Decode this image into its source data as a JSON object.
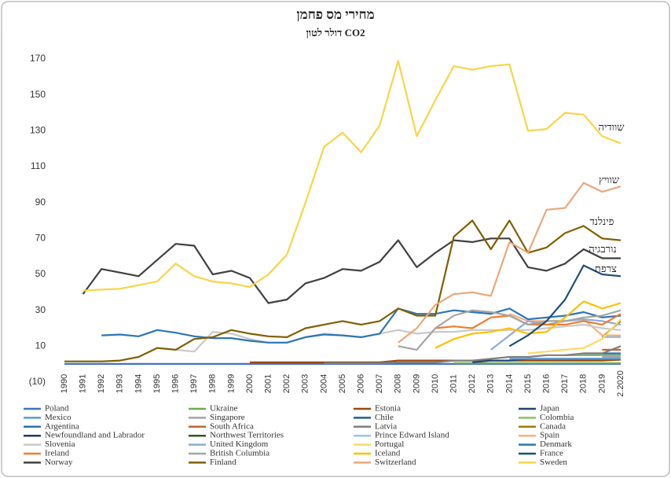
{
  "chart_data": {
    "type": "line",
    "title": "מחירי מס פחמן",
    "subtitle": "דולר לטון CO2",
    "annotations": [
      "שוודיה",
      "שוויץ",
      "פינלנד",
      "נורבגיה",
      "צרפת"
    ],
    "categories": [
      "1990",
      "1991",
      "1992",
      "1993",
      "1994",
      "1995",
      "1996",
      "1997",
      "1998",
      "1999",
      "2000",
      "2001",
      "2002",
      "2003",
      "2004",
      "2005",
      "2006",
      "2007",
      "2008",
      "2009",
      "2010",
      "2011",
      "2012",
      "2013",
      "2014",
      "2015",
      "2016",
      "2017",
      "2018",
      "2019",
      "2.2020"
    ],
    "ylim": [
      -10,
      175
    ],
    "yticks": [
      {
        "value": -10,
        "label": "(10)"
      },
      10,
      30,
      50,
      70,
      90,
      110,
      130,
      150,
      170
    ],
    "series": [
      {
        "name": "Poland",
        "color": "#4472c4",
        "values": [
          0.1,
          0.1,
          0.1,
          0.1,
          0.1,
          0.1,
          0.1,
          0.1,
          0.1,
          0.1,
          0.1,
          0.1,
          0.1,
          0.1,
          0.1,
          0.1,
          0.1,
          0.1,
          0.1,
          0.1,
          0.1,
          0.1,
          0.1,
          0.1,
          0.1,
          0.1,
          0.1,
          0.1,
          0.1,
          0.1,
          0.1
        ]
      },
      {
        "name": "Ukraine",
        "color": "#70ad47",
        "values": [
          null,
          null,
          null,
          null,
          null,
          null,
          null,
          null,
          null,
          null,
          null,
          null,
          null,
          null,
          null,
          null,
          null,
          null,
          null,
          null,
          null,
          0.5,
          0.5,
          0.5,
          0.5,
          0.5,
          0.5,
          0.5,
          0.5,
          0.5,
          0.5
        ]
      },
      {
        "name": "Estonia",
        "color": "#9e480e",
        "values": [
          null,
          null,
          null,
          null,
          null,
          null,
          null,
          null,
          null,
          null,
          1,
          1,
          1,
          1,
          1,
          1,
          1,
          1,
          2,
          2,
          2,
          2,
          2,
          2,
          2,
          2,
          2,
          2,
          2,
          2,
          2.5
        ]
      },
      {
        "name": "Japan",
        "color": "#264478",
        "values": [
          null,
          null,
          null,
          null,
          null,
          null,
          null,
          null,
          null,
          null,
          null,
          null,
          null,
          null,
          null,
          null,
          null,
          null,
          null,
          null,
          null,
          null,
          1,
          2,
          2,
          3,
          3,
          3,
          3,
          3,
          3
        ]
      },
      {
        "name": "Mexico",
        "color": "#5b9bd5",
        "values": [
          null,
          null,
          null,
          null,
          null,
          null,
          null,
          null,
          null,
          null,
          null,
          null,
          null,
          null,
          null,
          null,
          null,
          null,
          null,
          null,
          null,
          null,
          null,
          null,
          3,
          3,
          3,
          3,
          3,
          3,
          3
        ]
      },
      {
        "name": "Singapore",
        "color": "#a5a5a5",
        "values": [
          null,
          null,
          null,
          null,
          null,
          null,
          null,
          null,
          null,
          null,
          null,
          null,
          null,
          null,
          null,
          null,
          null,
          null,
          null,
          null,
          null,
          null,
          null,
          null,
          null,
          null,
          null,
          null,
          null,
          4,
          4
        ]
      },
      {
        "name": "Chile",
        "color": "#255e91",
        "values": [
          null,
          null,
          null,
          null,
          null,
          null,
          null,
          null,
          null,
          null,
          null,
          null,
          null,
          null,
          null,
          null,
          null,
          null,
          null,
          null,
          null,
          null,
          null,
          null,
          null,
          null,
          null,
          5,
          5,
          5,
          5
        ]
      },
      {
        "name": "Colombia",
        "color": "#8cc168",
        "values": [
          null,
          null,
          null,
          null,
          null,
          null,
          null,
          null,
          null,
          null,
          null,
          null,
          null,
          null,
          null,
          null,
          null,
          null,
          null,
          null,
          null,
          null,
          null,
          null,
          null,
          null,
          null,
          5,
          5,
          5,
          5
        ]
      },
      {
        "name": "Argentina",
        "color": "#2f6eba",
        "values": [
          null,
          null,
          null,
          null,
          null,
          null,
          null,
          null,
          null,
          null,
          null,
          null,
          null,
          null,
          null,
          null,
          null,
          null,
          null,
          null,
          null,
          null,
          null,
          null,
          null,
          null,
          null,
          null,
          6,
          6,
          6
        ]
      },
      {
        "name": "South Africa",
        "color": "#c5652d",
        "values": [
          null,
          null,
          null,
          null,
          null,
          null,
          null,
          null,
          null,
          null,
          null,
          null,
          null,
          null,
          null,
          null,
          null,
          null,
          null,
          null,
          null,
          null,
          null,
          null,
          null,
          null,
          null,
          null,
          null,
          8,
          8
        ]
      },
      {
        "name": "Latvia",
        "color": "#7f7f7f",
        "values": [
          null,
          null,
          null,
          null,
          null,
          null,
          null,
          null,
          null,
          null,
          null,
          null,
          null,
          null,
          0.5,
          0.5,
          0.5,
          0.5,
          1,
          1,
          1,
          2,
          2,
          3,
          4,
          4,
          5,
          5,
          6,
          6,
          10
        ]
      },
      {
        "name": "Canada",
        "color": "#9e7b0c",
        "values": [
          null,
          null,
          null,
          null,
          null,
          null,
          null,
          null,
          null,
          null,
          null,
          null,
          null,
          null,
          null,
          null,
          null,
          null,
          null,
          null,
          null,
          null,
          null,
          null,
          null,
          null,
          null,
          null,
          null,
          15,
          24
        ]
      },
      {
        "name": "Newfoundland and Labrador",
        "color": "#203864",
        "values": [
          null,
          null,
          null,
          null,
          null,
          null,
          null,
          null,
          null,
          null,
          null,
          null,
          null,
          null,
          null,
          null,
          null,
          null,
          null,
          null,
          null,
          null,
          null,
          null,
          null,
          null,
          null,
          null,
          null,
          15,
          15
        ]
      },
      {
        "name": "Northwest Territories",
        "color": "#375623",
        "values": [
          null,
          null,
          null,
          null,
          null,
          null,
          null,
          null,
          null,
          null,
          null,
          null,
          null,
          null,
          null,
          null,
          null,
          null,
          null,
          null,
          null,
          null,
          null,
          null,
          null,
          null,
          null,
          null,
          null,
          15,
          15
        ]
      },
      {
        "name": "Prince Edward Island",
        "color": "#9dc3e6",
        "values": [
          null,
          null,
          null,
          null,
          null,
          null,
          null,
          null,
          null,
          null,
          null,
          null,
          null,
          null,
          null,
          null,
          null,
          null,
          null,
          null,
          null,
          null,
          null,
          null,
          null,
          null,
          null,
          null,
          null,
          15,
          15
        ]
      },
      {
        "name": "Spain",
        "color": "#f4b183",
        "values": [
          null,
          null,
          null,
          null,
          null,
          null,
          null,
          null,
          null,
          null,
          null,
          null,
          null,
          null,
          null,
          null,
          null,
          null,
          null,
          null,
          null,
          null,
          null,
          null,
          28,
          24,
          24,
          24,
          25,
          16,
          16
        ]
      },
      {
        "name": "Slovenia",
        "color": "#c9c9c9",
        "values": [
          null,
          null,
          null,
          null,
          null,
          null,
          8,
          7,
          18,
          17,
          14,
          12,
          12,
          15,
          17,
          16,
          15,
          17,
          19,
          17,
          18,
          18,
          19,
          19,
          19,
          19,
          20,
          21,
          22,
          20,
          19
        ]
      },
      {
        "name": "United Kingdom",
        "color": "#8faadc",
        "values": [
          null,
          null,
          null,
          null,
          null,
          null,
          null,
          null,
          null,
          null,
          null,
          null,
          null,
          null,
          null,
          null,
          null,
          null,
          null,
          null,
          null,
          null,
          null,
          8,
          16,
          24,
          22,
          24,
          25,
          24,
          22
        ]
      },
      {
        "name": "Portugal",
        "color": "#ffd966",
        "values": [
          null,
          null,
          null,
          null,
          null,
          null,
          null,
          null,
          null,
          null,
          null,
          null,
          null,
          null,
          null,
          null,
          null,
          null,
          null,
          null,
          null,
          null,
          null,
          null,
          null,
          6,
          7,
          8,
          9,
          14,
          25
        ]
      },
      {
        "name": "Denmark",
        "color": "#2e75b6",
        "values": [
          null,
          null,
          16,
          16.5,
          15.5,
          19,
          17.5,
          15.5,
          14.5,
          14.5,
          13,
          12,
          12,
          15,
          16.5,
          16,
          15,
          17,
          31,
          28,
          28,
          30,
          29,
          28,
          31,
          25,
          26,
          27,
          29,
          26,
          27
        ]
      },
      {
        "name": "Ireland",
        "color": "#ed7d31",
        "values": [
          null,
          null,
          null,
          null,
          null,
          null,
          null,
          null,
          null,
          null,
          null,
          null,
          null,
          null,
          null,
          null,
          null,
          null,
          null,
          null,
          20,
          21,
          20,
          26,
          27,
          22,
          22,
          22,
          24,
          22,
          28
        ]
      },
      {
        "name": "British Columbia",
        "color": "#a5a5a5",
        "values": [
          null,
          null,
          null,
          null,
          null,
          null,
          null,
          null,
          null,
          null,
          null,
          null,
          null,
          null,
          null,
          null,
          null,
          null,
          10,
          8,
          20,
          27,
          30,
          29,
          27,
          22,
          24,
          24,
          26,
          27,
          30
        ]
      },
      {
        "name": "Iceland",
        "color": "#ffc000",
        "values": [
          null,
          null,
          null,
          null,
          null,
          null,
          null,
          null,
          null,
          null,
          null,
          null,
          null,
          null,
          null,
          null,
          null,
          null,
          null,
          null,
          9,
          14,
          17,
          18,
          20,
          17,
          18,
          26,
          35,
          31,
          34
        ]
      },
      {
        "name": "France",
        "color": "#1f4e79",
        "values": [
          null,
          null,
          null,
          null,
          null,
          null,
          null,
          null,
          null,
          null,
          null,
          null,
          null,
          null,
          null,
          null,
          null,
          null,
          null,
          null,
          null,
          null,
          null,
          null,
          10,
          16,
          24,
          36,
          55,
          50,
          49
        ]
      },
      {
        "name": "Norway",
        "color": "#404040",
        "values": [
          null,
          39,
          53,
          51,
          49,
          58,
          67,
          66,
          50,
          52,
          48,
          34,
          36,
          45,
          48,
          53,
          52,
          57,
          69,
          54,
          62,
          69,
          68,
          70,
          70,
          54,
          52,
          56,
          64,
          59,
          59
        ]
      },
      {
        "name": "Finland",
        "color": "#7f6000",
        "values": [
          1.5,
          1.5,
          1.5,
          2,
          4,
          9,
          8,
          14,
          15,
          19,
          17,
          15.5,
          15,
          20,
          22,
          24,
          22,
          24,
          31,
          27,
          27,
          71,
          80,
          64,
          80,
          62,
          65,
          73,
          77,
          70,
          69
        ]
      },
      {
        "name": "Switzerland",
        "color": "#eda67a",
        "values": [
          null,
          null,
          null,
          null,
          null,
          null,
          null,
          null,
          null,
          null,
          null,
          null,
          null,
          null,
          null,
          null,
          null,
          null,
          12,
          20,
          33,
          39,
          40,
          38,
          68,
          62,
          86,
          87,
          101,
          96,
          99
        ]
      },
      {
        "name": "Sweden",
        "color": "#f9d548",
        "values": [
          null,
          41,
          41.5,
          42,
          44,
          46,
          56,
          49,
          46,
          45,
          43,
          50,
          61,
          90,
          121,
          129,
          118,
          133,
          169,
          127,
          147,
          166,
          164,
          166,
          167,
          130,
          131,
          140,
          139,
          127,
          123
        ]
      }
    ]
  }
}
